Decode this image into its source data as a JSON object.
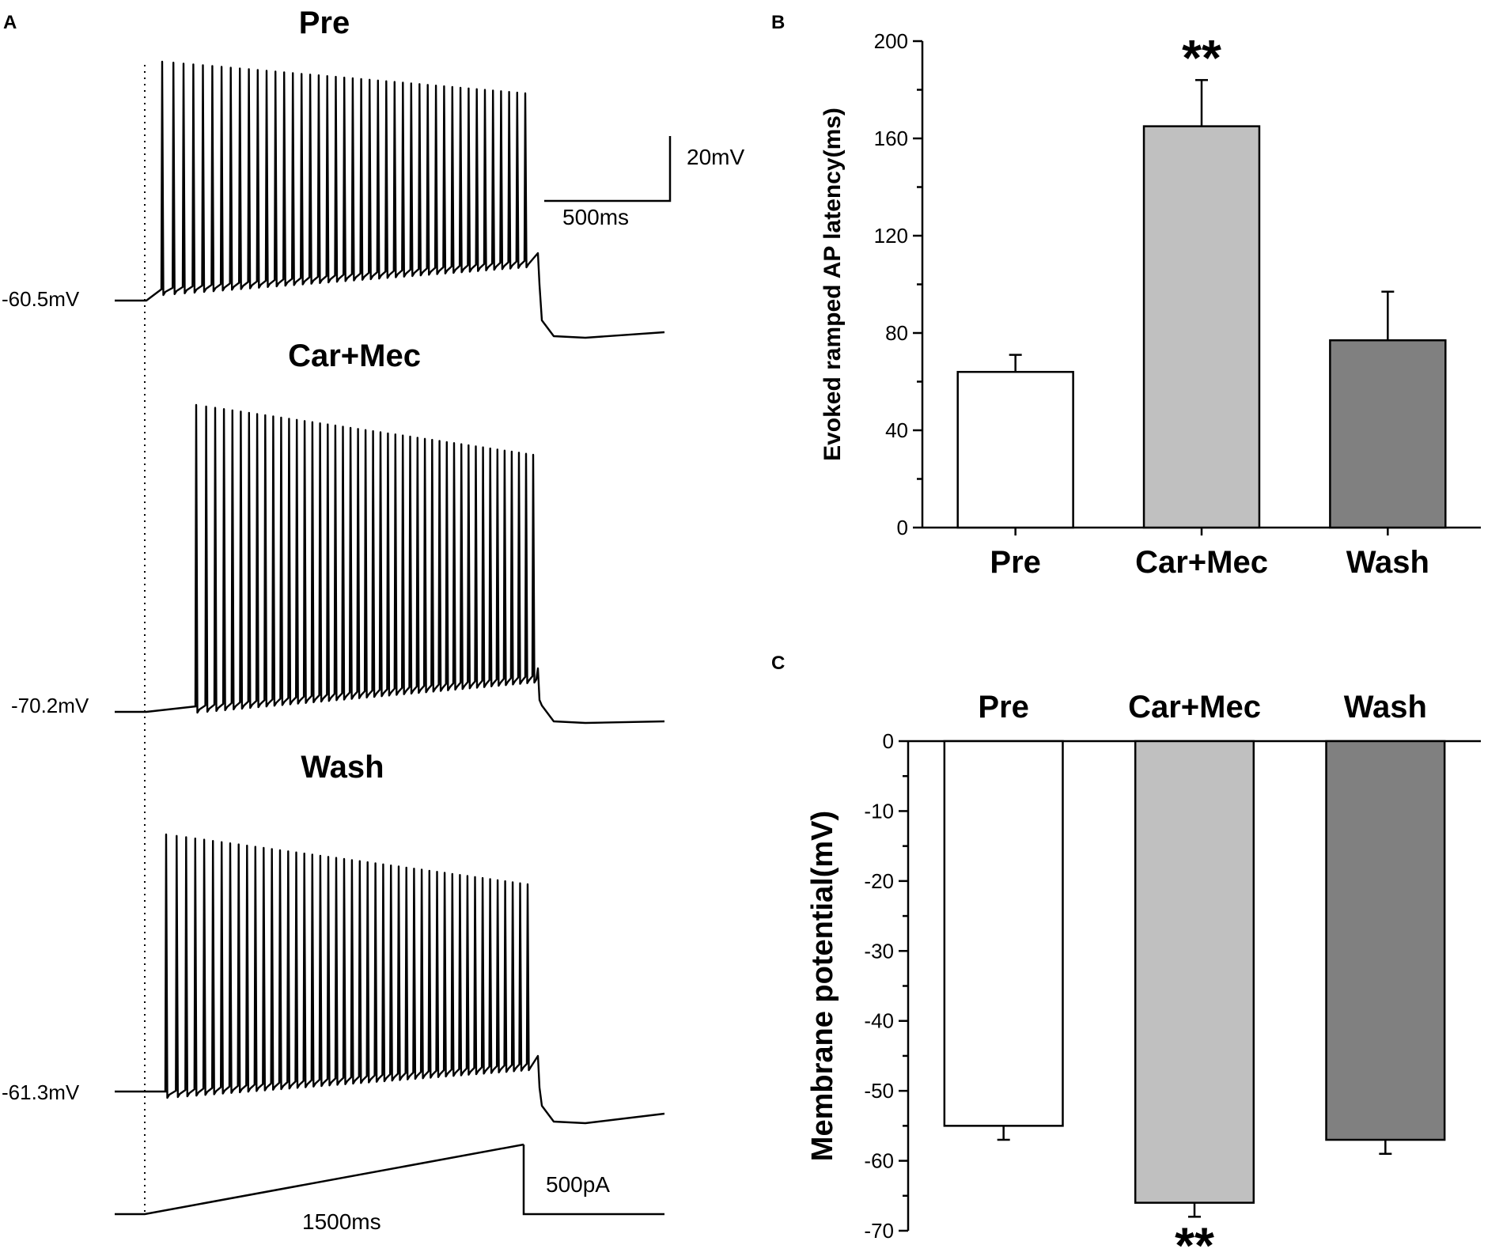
{
  "panels": {
    "a": {
      "letter": "A",
      "traces": [
        {
          "title": "Pre",
          "resting_label": "-60.5mV"
        },
        {
          "title": "Car+Mec",
          "resting_label": "-70.2mV"
        },
        {
          "title": "Wash",
          "resting_label": "-61.3mV"
        }
      ],
      "scale_bar": {
        "voltage": "20mV",
        "time": "500ms"
      },
      "ramp": {
        "current": "500pA",
        "duration": "1500ms"
      }
    },
    "b": {
      "letter": "B"
    },
    "c": {
      "letter": "C"
    }
  },
  "chart_data": [
    {
      "type": "bar",
      "panel": "B",
      "categories": [
        "Pre",
        "Car+Mec",
        "Wash"
      ],
      "values": [
        64,
        165,
        77
      ],
      "errors": [
        7,
        19,
        20
      ],
      "bar_colors": [
        "#ffffff",
        "#c0c0c0",
        "#808080"
      ],
      "significance": [
        "",
        "**",
        ""
      ],
      "ylabel": "Evoked  ramped AP latency(ms)",
      "ylim": [
        0,
        200
      ],
      "yticks": [
        0,
        40,
        80,
        120,
        160,
        200
      ]
    },
    {
      "type": "bar",
      "panel": "C",
      "categories": [
        "Pre",
        "Car+Mec",
        "Wash"
      ],
      "values": [
        -55,
        -66,
        -57
      ],
      "errors": [
        2,
        2,
        2
      ],
      "bar_colors": [
        "#ffffff",
        "#c0c0c0",
        "#808080"
      ],
      "significance": [
        "",
        "**",
        ""
      ],
      "ylabel": "Membrane potential(mV)",
      "ylim": [
        -70,
        0
      ],
      "yticks": [
        0,
        -10,
        -20,
        -30,
        -40,
        -50,
        -60,
        -70
      ]
    }
  ]
}
